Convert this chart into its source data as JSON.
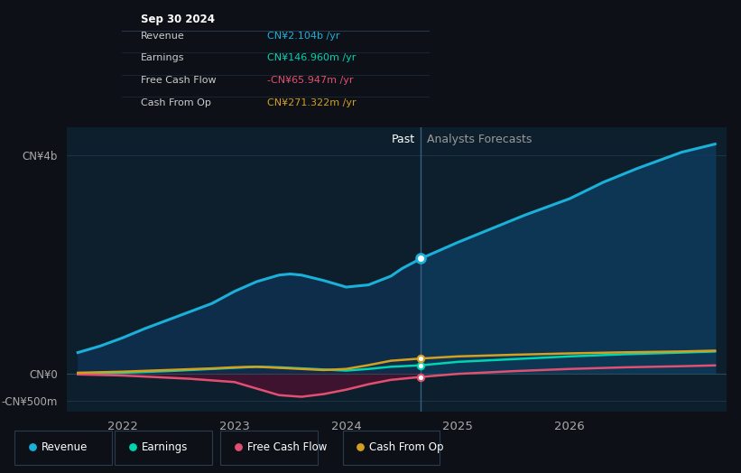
{
  "bg_color": "#0d1117",
  "plot_bg_color": "#0d1f2d",
  "divider_x": 2024.67,
  "past_label": "Past",
  "forecast_label": "Analysts Forecasts",
  "ylabel_top": "CN¥4b",
  "ylabel_zero": "CN¥0",
  "ylabel_neg": "-CN¥500m",
  "ylim": [
    -700000000,
    4500000000
  ],
  "xlim": [
    2021.5,
    2027.4
  ],
  "xticks": [
    2022,
    2023,
    2024,
    2025,
    2026
  ],
  "tooltip": {
    "date": "Sep 30 2024",
    "rows": [
      {
        "label": "Revenue",
        "value": "CN¥2.104b /yr",
        "color": "#1ab0d8"
      },
      {
        "label": "Earnings",
        "value": "CN¥146.960m /yr",
        "color": "#00d4b0"
      },
      {
        "label": "Free Cash Flow",
        "value": "-CN¥65.947m /yr",
        "color": "#e05070"
      },
      {
        "label": "Cash From Op",
        "value": "CN¥271.322m /yr",
        "color": "#d4a020"
      }
    ]
  },
  "revenue": {
    "color": "#1ab0d8",
    "past_x": [
      2021.6,
      2021.8,
      2022.0,
      2022.2,
      2022.5,
      2022.8,
      2023.0,
      2023.2,
      2023.4,
      2023.5,
      2023.6,
      2023.8,
      2024.0,
      2024.2,
      2024.4,
      2024.5,
      2024.67
    ],
    "past_y": [
      380000000,
      500000000,
      650000000,
      820000000,
      1050000000,
      1280000000,
      1500000000,
      1680000000,
      1800000000,
      1820000000,
      1800000000,
      1700000000,
      1580000000,
      1620000000,
      1780000000,
      1920000000,
      2104000000
    ],
    "future_x": [
      2024.67,
      2025.0,
      2025.3,
      2025.6,
      2026.0,
      2026.3,
      2026.6,
      2027.0,
      2027.3
    ],
    "future_y": [
      2104000000,
      2400000000,
      2650000000,
      2900000000,
      3200000000,
      3500000000,
      3750000000,
      4050000000,
      4200000000
    ]
  },
  "earnings": {
    "color": "#00d4b0",
    "past_x": [
      2021.6,
      2022.0,
      2022.4,
      2022.8,
      2023.0,
      2023.2,
      2023.4,
      2023.6,
      2023.8,
      2024.0,
      2024.2,
      2024.4,
      2024.67
    ],
    "past_y": [
      -20000000,
      10000000,
      40000000,
      80000000,
      100000000,
      120000000,
      110000000,
      90000000,
      70000000,
      50000000,
      80000000,
      120000000,
      147000000
    ],
    "future_x": [
      2024.67,
      2025.0,
      2025.5,
      2026.0,
      2026.5,
      2027.0,
      2027.3
    ],
    "future_y": [
      147000000,
      210000000,
      260000000,
      310000000,
      350000000,
      380000000,
      400000000
    ]
  },
  "fcf": {
    "color": "#e05070",
    "past_x": [
      2021.6,
      2022.0,
      2022.3,
      2022.6,
      2023.0,
      2023.2,
      2023.4,
      2023.6,
      2023.8,
      2024.0,
      2024.2,
      2024.4,
      2024.67
    ],
    "past_y": [
      -20000000,
      -40000000,
      -70000000,
      -100000000,
      -160000000,
      -280000000,
      -400000000,
      -430000000,
      -380000000,
      -300000000,
      -200000000,
      -120000000,
      -66000000
    ],
    "future_x": [
      2024.67,
      2025.0,
      2025.5,
      2026.0,
      2026.5,
      2027.0,
      2027.3
    ],
    "future_y": [
      -66000000,
      -10000000,
      40000000,
      80000000,
      110000000,
      130000000,
      145000000
    ]
  },
  "cashfromop": {
    "color": "#d4a020",
    "past_x": [
      2021.6,
      2022.0,
      2022.4,
      2022.8,
      2023.0,
      2023.2,
      2023.4,
      2023.6,
      2023.8,
      2024.0,
      2024.2,
      2024.4,
      2024.67
    ],
    "past_y": [
      10000000,
      30000000,
      60000000,
      90000000,
      110000000,
      120000000,
      100000000,
      80000000,
      60000000,
      80000000,
      150000000,
      230000000,
      271000000
    ],
    "future_x": [
      2024.67,
      2025.0,
      2025.5,
      2026.0,
      2026.5,
      2027.0,
      2027.3
    ],
    "future_y": [
      271000000,
      310000000,
      340000000,
      365000000,
      385000000,
      400000000,
      415000000
    ]
  },
  "legend": [
    {
      "label": "Revenue",
      "color": "#1ab0d8"
    },
    {
      "label": "Earnings",
      "color": "#00d4b0"
    },
    {
      "label": "Free Cash Flow",
      "color": "#e05070"
    },
    {
      "label": "Cash From Op",
      "color": "#d4a020"
    }
  ]
}
